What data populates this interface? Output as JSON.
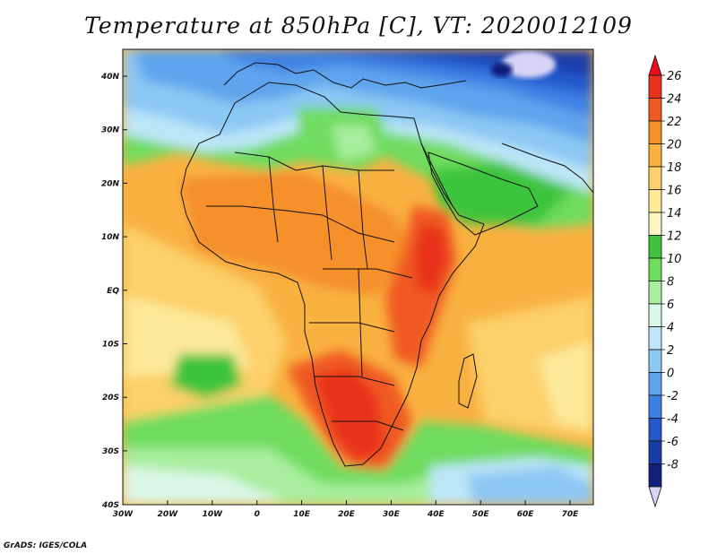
{
  "title": "Temperature at 850hPa [C], VT: 2020012109",
  "credit": "GrADS: IGES/COLA",
  "map": {
    "lat_labels": [
      "40N",
      "30N",
      "20N",
      "10N",
      "EQ",
      "10S",
      "20S",
      "30S",
      "40S"
    ],
    "lon_labels": [
      "30W",
      "20W",
      "10W",
      "0",
      "10E",
      "20E",
      "30E",
      "40E",
      "50E",
      "60E",
      "70E"
    ]
  },
  "colorbar": {
    "labels": [
      "26",
      "24",
      "22",
      "20",
      "18",
      "16",
      "14",
      "12",
      "10",
      "8",
      "6",
      "4",
      "2",
      "0",
      "-2",
      "-4",
      "-6",
      "-8"
    ],
    "colors": {
      "above": "#e8101a",
      "c26": "#e8321c",
      "c24": "#f05a22",
      "c22": "#f5902a",
      "c20": "#f9b140",
      "c18": "#fcd06a",
      "c16": "#fde99a",
      "c14": "#fdf6c4",
      "c12": "#3ec43e",
      "c10": "#6fdc5e",
      "c8": "#a8ee9e",
      "c6": "#dcf6e8",
      "c4": "#bde6f8",
      "c2": "#8cc8f4",
      "c0": "#5ea4ee",
      "cm2": "#3c80e4",
      "cm4": "#2458cc",
      "cm6": "#1a3ca8",
      "cm8": "#0f1f7a",
      "below": "#d8d4f8"
    }
  }
}
